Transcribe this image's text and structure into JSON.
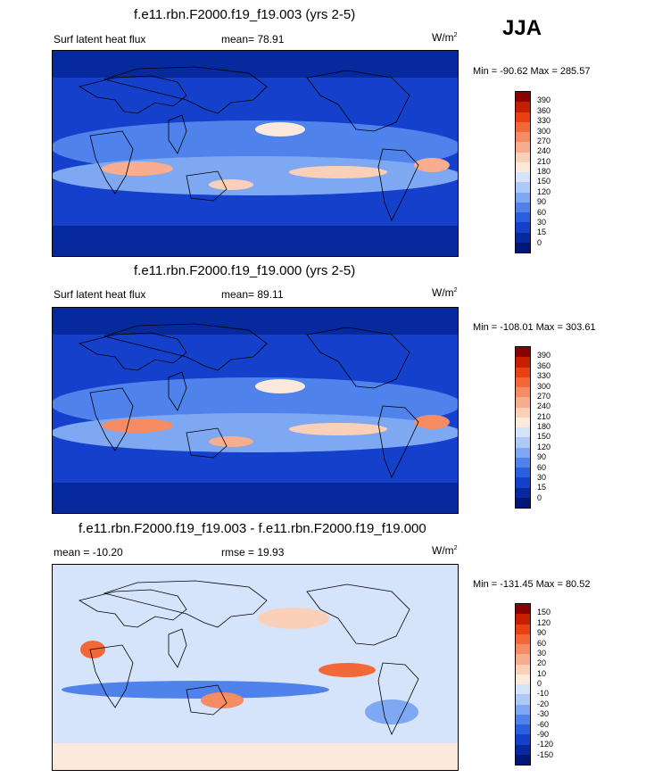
{
  "season": "JJA",
  "panels": [
    {
      "title": "f.e11.rbn.F2000.f19_f19.003 (yrs 2-5)",
      "left_label": "Surf latent heat flux",
      "center_label": "mean=  78.91",
      "units": "W/m",
      "units_sup": "2",
      "minmax": "Min = -90.62 Max = 285.57",
      "levels": [
        "390",
        "360",
        "330",
        "300",
        "270",
        "240",
        "210",
        "180",
        "150",
        "120",
        "90",
        "60",
        "30",
        "15",
        "0"
      ],
      "colors": [
        "#8b0000",
        "#c81e00",
        "#e8410f",
        "#f36838",
        "#f58c63",
        "#f8ad8e",
        "#fbd0b8",
        "#fbe9dc",
        "#d6e4fb",
        "#aec9f8",
        "#7fa8f2",
        "#4f82ea",
        "#2a5fe0",
        "#1540cc",
        "#062a9e",
        "#00177a"
      ]
    },
    {
      "title": "f.e11.rbn.F2000.f19_f19.000 (yrs 2-5)",
      "left_label": "Surf latent heat flux",
      "center_label": "mean=  89.11",
      "units": "W/m",
      "units_sup": "2",
      "minmax": "Min = -108.01 Max = 303.61",
      "levels": [
        "390",
        "360",
        "330",
        "300",
        "270",
        "240",
        "210",
        "180",
        "150",
        "120",
        "90",
        "60",
        "30",
        "15",
        "0"
      ],
      "colors": [
        "#8b0000",
        "#c81e00",
        "#e8410f",
        "#f36838",
        "#f58c63",
        "#f8ad8e",
        "#fbd0b8",
        "#fbe9dc",
        "#d6e4fb",
        "#aec9f8",
        "#7fa8f2",
        "#4f82ea",
        "#2a5fe0",
        "#1540cc",
        "#062a9e",
        "#00177a"
      ]
    },
    {
      "title": "f.e11.rbn.F2000.f19_f19.003 - f.e11.rbn.F2000.f19_f19.000",
      "left_label": "mean = -10.20",
      "center_label": "rmse =  19.93",
      "units": "W/m",
      "units_sup": "2",
      "minmax": "Min = -131.45 Max =  80.52",
      "levels": [
        "150",
        "120",
        "90",
        "60",
        "30",
        "20",
        "10",
        "0",
        "-10",
        "-20",
        "-30",
        "-60",
        "-90",
        "-120",
        "-150"
      ],
      "colors": [
        "#8b0000",
        "#c81e00",
        "#e8410f",
        "#f36838",
        "#f58c63",
        "#f8ad8e",
        "#fbd0b8",
        "#fbe9dc",
        "#d6e4fb",
        "#aec9f8",
        "#7fa8f2",
        "#4f82ea",
        "#2a5fe0",
        "#1540cc",
        "#062a9e",
        "#00177a"
      ]
    }
  ],
  "chart_data": [
    {
      "type": "heatmap",
      "title": "f.e11.rbn.F2000.f19_f19.003 (yrs 2-5)",
      "variable": "Surf latent heat flux",
      "mean": 78.91,
      "min": -90.62,
      "max": 285.57,
      "units": "W/m2",
      "contour_levels": [
        0,
        15,
        30,
        60,
        90,
        120,
        150,
        180,
        210,
        240,
        270,
        300,
        330,
        360,
        390
      ]
    },
    {
      "type": "heatmap",
      "title": "f.e11.rbn.F2000.f19_f19.000 (yrs 2-5)",
      "variable": "Surf latent heat flux",
      "mean": 89.11,
      "min": -108.01,
      "max": 303.61,
      "units": "W/m2",
      "contour_levels": [
        0,
        15,
        30,
        60,
        90,
        120,
        150,
        180,
        210,
        240,
        270,
        300,
        330,
        360,
        390
      ]
    },
    {
      "type": "heatmap",
      "title": "f.e11.rbn.F2000.f19_f19.003 - f.e11.rbn.F2000.f19_f19.000",
      "mean": -10.2,
      "rmse": 19.93,
      "min": -131.45,
      "max": 80.52,
      "units": "W/m2",
      "contour_levels": [
        -150,
        -120,
        -90,
        -60,
        -30,
        -20,
        -10,
        0,
        10,
        20,
        30,
        60,
        90,
        120,
        150
      ]
    }
  ]
}
